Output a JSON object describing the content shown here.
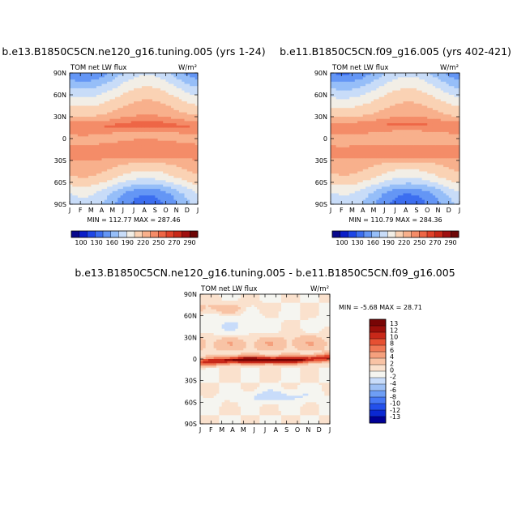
{
  "chart_data": [
    {
      "type": "heatmap",
      "title": "b.e13.B1850C5CN.ne120_g16.tuning.005 (yrs 1-24)",
      "variable_label": "TOM net LW flux",
      "units_label": "W/m²",
      "x_tick_labels": [
        "J",
        "F",
        "M",
        "A",
        "M",
        "J",
        "J",
        "A",
        "S",
        "O",
        "N",
        "D",
        "J"
      ],
      "y_tick_labels": [
        "90N",
        "60N",
        "30N",
        "0",
        "30S",
        "60S",
        "90S"
      ],
      "y_values": [
        90,
        60,
        30,
        0,
        -30,
        -60,
        -90
      ],
      "stats_text": "MIN = 112.77  MAX = 287.46",
      "min": 112.77,
      "max": 287.46,
      "colorbar_labels": [
        "100",
        "130",
        "160",
        "190",
        "220",
        "250",
        "270",
        "290"
      ],
      "colorbar_levels": [
        100,
        130,
        160,
        190,
        220,
        250,
        270,
        290
      ]
    },
    {
      "type": "heatmap",
      "title": "b.e11.B1850C5CN.f09_g16.005 (yrs 402-421)",
      "variable_label": "TOM net LW flux",
      "units_label": "W/m²",
      "x_tick_labels": [
        "J",
        "F",
        "M",
        "A",
        "M",
        "J",
        "J",
        "A",
        "S",
        "O",
        "N",
        "D",
        "J"
      ],
      "y_tick_labels": [
        "90N",
        "60N",
        "30N",
        "0",
        "30S",
        "60S",
        "90S"
      ],
      "y_values": [
        90,
        60,
        30,
        0,
        -30,
        -60,
        -90
      ],
      "stats_text": "MIN = 110.79  MAX = 284.36",
      "min": 110.79,
      "max": 284.36,
      "colorbar_labels": [
        "100",
        "130",
        "160",
        "190",
        "220",
        "250",
        "270",
        "290"
      ],
      "colorbar_levels": [
        100,
        130,
        160,
        190,
        220,
        250,
        270,
        290
      ]
    },
    {
      "type": "heatmap",
      "title": "b.e13.B1850C5CN.ne120_g16.tuning.005 - b.e11.B1850C5CN.f09_g16.005",
      "variable_label": "TOM net LW flux",
      "units_label": "W/m²",
      "x_tick_labels": [
        "J",
        "F",
        "M",
        "A",
        "M",
        "J",
        "J",
        "A",
        "S",
        "O",
        "N",
        "D",
        "J"
      ],
      "y_tick_labels": [
        "90N",
        "60N",
        "30N",
        "0",
        "30S",
        "60S",
        "90S"
      ],
      "y_values": [
        90,
        60,
        30,
        0,
        -30,
        -60,
        -90
      ],
      "stats_text": "MIN =  -5.68  MAX =  28.71",
      "min": -5.68,
      "max": 28.71,
      "colorbar_labels": [
        "13",
        "12",
        "10",
        "8",
        "6",
        "4",
        "2",
        "0",
        "-2",
        "-4",
        "-6",
        "-8",
        "-10",
        "-12",
        "-13"
      ],
      "colorbar_levels": [
        13,
        12,
        10,
        8,
        6,
        4,
        2,
        0,
        -2,
        -4,
        -6,
        -8,
        -10,
        -12,
        -13
      ]
    }
  ],
  "colors": {
    "absolute_scale": [
      "#08088c",
      "#0a1ec8",
      "#1e46e6",
      "#3c6ef0",
      "#6496f5",
      "#96bef8",
      "#c8dcf8",
      "#f2eee6",
      "#fad2b4",
      "#f8b08c",
      "#f48c68",
      "#ee6646",
      "#e0422a",
      "#c82818",
      "#a01010",
      "#6e0606"
    ],
    "difference_scale": [
      "#000096",
      "#0a28d2",
      "#2350eb",
      "#4678f5",
      "#6e9ef5",
      "#9ec0f5",
      "#c8dcfa",
      "#f5f5f0",
      "#fae1cd",
      "#f8c3a5",
      "#f5a07d",
      "#f07855",
      "#e65032",
      "#c82819",
      "#9b0f0a",
      "#780505"
    ]
  }
}
